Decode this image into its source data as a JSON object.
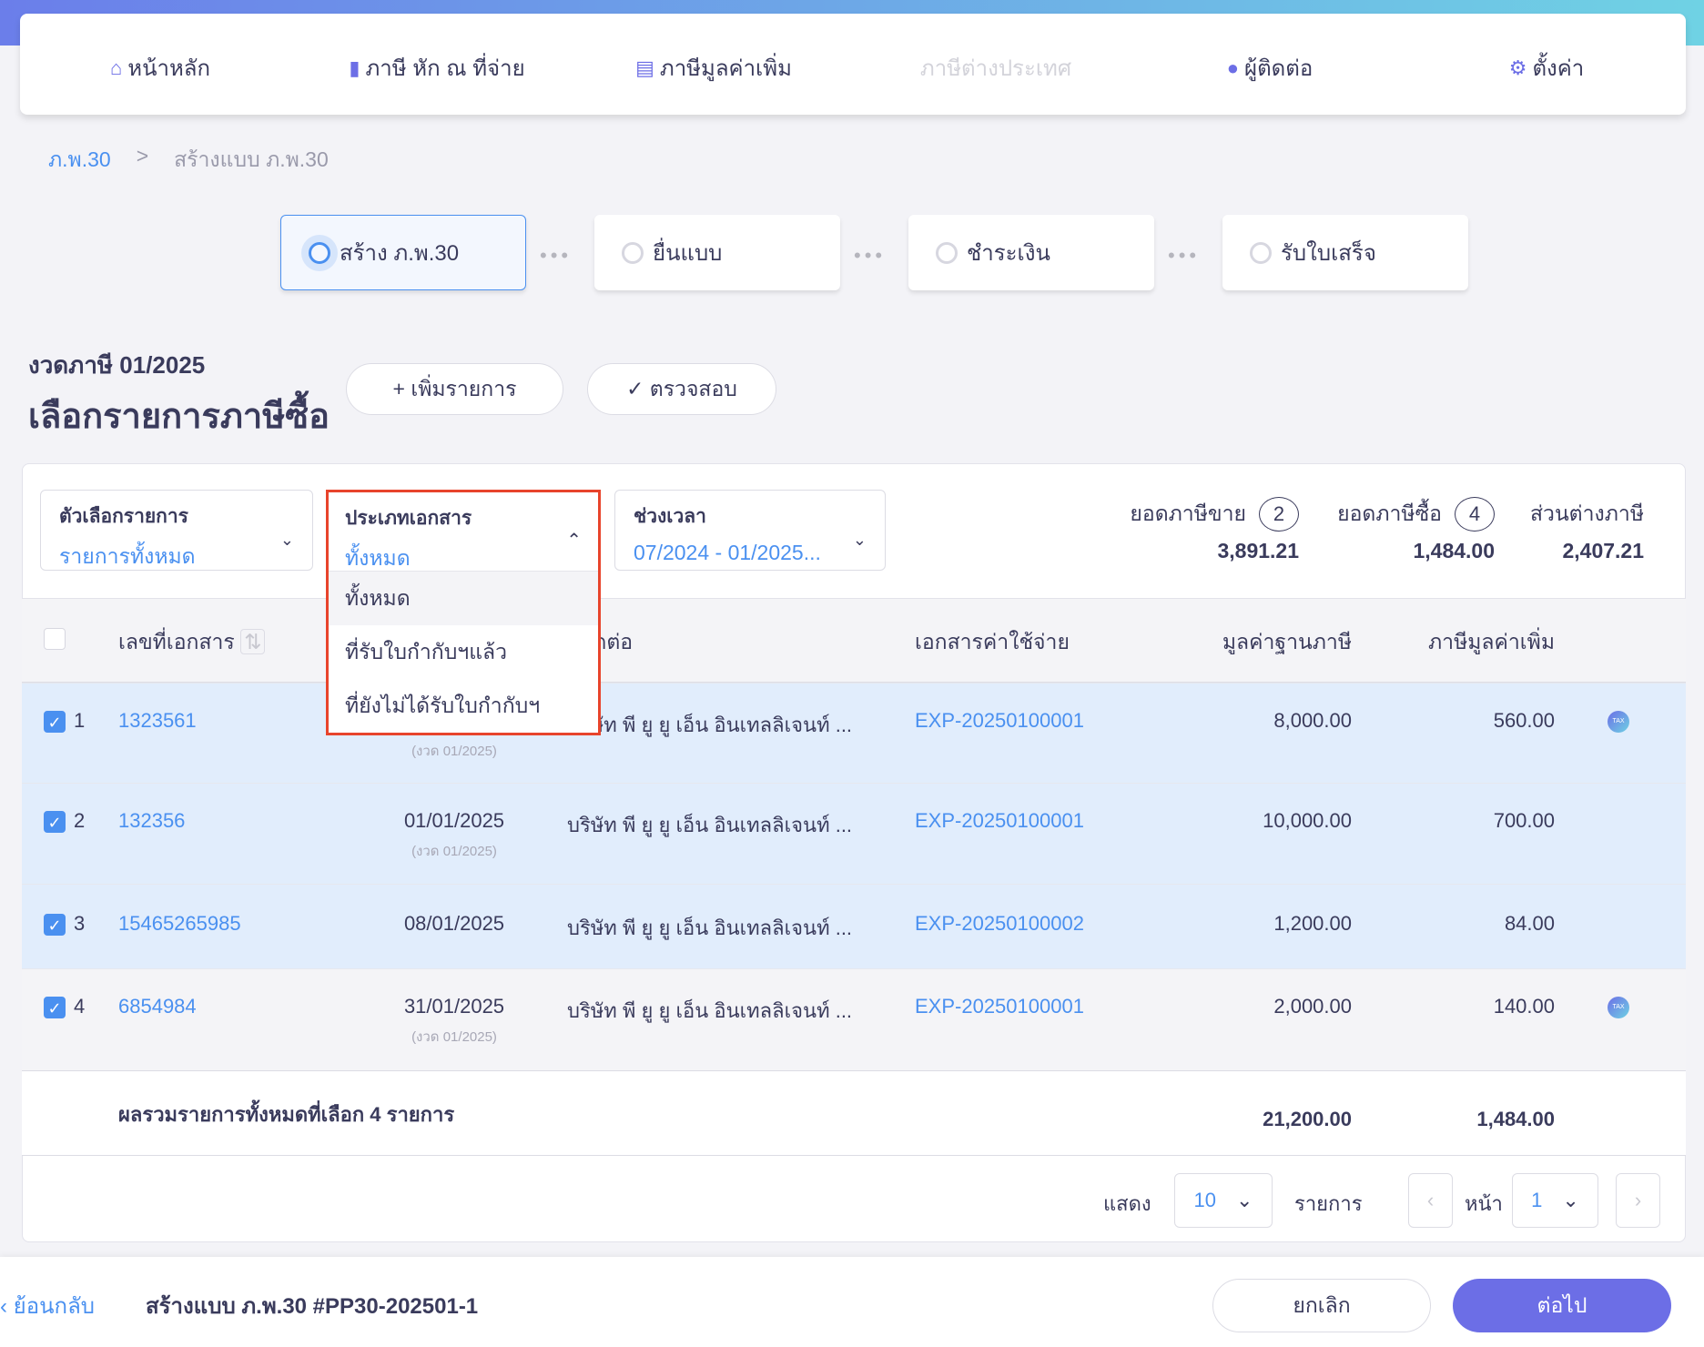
{
  "nav": {
    "items": [
      {
        "label": "หน้าหลัก",
        "icon": "home-icon",
        "glyph": "⌂"
      },
      {
        "label": "ภาษี หัก ณ ที่จ่าย",
        "icon": "wallet-icon",
        "glyph": "▮"
      },
      {
        "label": "ภาษีมูลค่าเพิ่ม",
        "icon": "document-icon",
        "glyph": "▤"
      },
      {
        "label": "ภาษีต่างประเทศ",
        "icon": "",
        "glyph": "",
        "disabled": true
      },
      {
        "label": "ผู้ติดต่อ",
        "icon": "user-icon",
        "glyph": "●"
      },
      {
        "label": "ตั้งค่า",
        "icon": "gear-icon",
        "glyph": "⚙"
      }
    ]
  },
  "breadcrumb": {
    "root": "ภ.พ.30",
    "separator": ">",
    "current": "สร้างแบบ ภ.พ.30"
  },
  "steps": [
    {
      "label": "สร้าง ภ.พ.30",
      "active": true
    },
    {
      "label": "ยื่นแบบ"
    },
    {
      "label": "ชำระเงิน"
    },
    {
      "label": "รับใบเสร็จ"
    }
  ],
  "page": {
    "period": "งวดภาษี 01/2025",
    "title": "เลือกรายการภาษีซื้อ",
    "add_label": "+ เพิ่มรายการ",
    "check_label": "✓ ตรวจสอบ"
  },
  "filters": {
    "option": {
      "label": "ตัวเลือกรายการ",
      "value": "รายการทั้งหมด"
    },
    "doctype": {
      "label": "ประเภทเอกสาร",
      "value": "ทั้งหมด",
      "options": [
        "ทั้งหมด",
        "ที่รับใบกำกับฯแล้ว",
        "ที่ยังไม่ได้รับใบกำกับฯ"
      ],
      "selected": 0
    },
    "range": {
      "label": "ช่วงเวลา",
      "value": "07/2024 - 01/2025..."
    }
  },
  "summary": {
    "sales": {
      "label": "ยอดภาษีขาย",
      "count": "2",
      "value": "3,891.21"
    },
    "purchase": {
      "label": "ยอดภาษีซื้อ",
      "count": "4",
      "value": "1,484.00"
    },
    "diff": {
      "label": "ส่วนต่างภาษี",
      "value": "2,407.21"
    }
  },
  "table": {
    "headers": {
      "doc": "เลขที่เอกสาร",
      "contact": "ผู้ติดต่อ",
      "expense": "เอกสารค่าใช้จ่าย",
      "base": "มูลค่าฐานภาษี",
      "vat": "ภาษีมูลค่าเพิ่ม"
    },
    "rows": [
      {
        "n": "1",
        "doc": "1323561",
        "date": "",
        "period": "(งวด 01/2025)",
        "contact": "บริษัท พี ยู ยู เอ็น อินเทลลิเจนท์ ...",
        "exp": "EXP-20250100001",
        "base": "8,000.00",
        "vat": "560.00",
        "tax": true,
        "checked": true
      },
      {
        "n": "2",
        "doc": "132356",
        "date": "01/01/2025",
        "period": "(งวด 01/2025)",
        "contact": "บริษัท พี ยู ยู เอ็น อินเทลลิเจนท์ ...",
        "exp": "EXP-20250100001",
        "base": "10,000.00",
        "vat": "700.00",
        "tax": false,
        "checked": true
      },
      {
        "n": "3",
        "doc": "15465265985",
        "date": "08/01/2025",
        "period": "",
        "contact": "บริษัท พี ยู ยู เอ็น อินเทลลิเจนท์ ...",
        "exp": "EXP-20250100002",
        "base": "1,200.00",
        "vat": "84.00",
        "tax": false,
        "checked": true
      },
      {
        "n": "4",
        "doc": "6854984",
        "date": "31/01/2025",
        "period": "(งวด 01/2025)",
        "contact": "บริษัท พี ยู ยู เอ็น อินเทลลิเจนท์ ...",
        "exp": "EXP-20250100001",
        "base": "2,000.00",
        "vat": "140.00",
        "tax": true,
        "checked": true
      }
    ],
    "total": {
      "label": "ผลรวมรายการทั้งหมดที่เลือก 4 รายการ",
      "base": "21,200.00",
      "vat": "1,484.00"
    },
    "tax_icon_text": "TAX"
  },
  "pagination": {
    "show_label": "แสดง",
    "page_size": "10",
    "items_label": "รายการ",
    "page_label": "หน้า",
    "page": "1"
  },
  "footer": {
    "back": "ย้อนกลับ",
    "title": "สร้างแบบ ภ.พ.30 #PP30-202501-1",
    "cancel": "ยกเลิก",
    "next": "ต่อไป"
  },
  "colors": {
    "accent": "#6c6ee6",
    "link": "#4a90f0",
    "highlight": "#e8442c",
    "selected_row": "#e1edfc"
  }
}
